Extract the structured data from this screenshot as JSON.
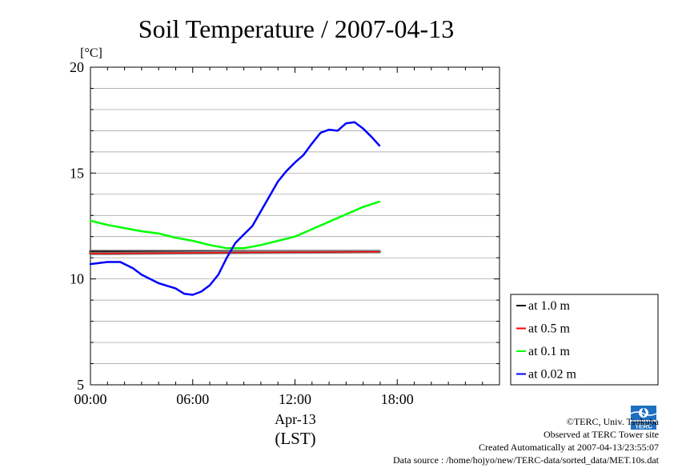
{
  "chart_data": {
    "type": "line",
    "title": "Soil Temperature / 2007-04-13",
    "ylabel": "[°C]",
    "xlabel_date": "Apr-13",
    "xlabel_tz": "(LST)",
    "ylim": [
      5,
      20
    ],
    "xlim": [
      "00:00",
      "24:00"
    ],
    "y_ticks": [
      5,
      10,
      15,
      20
    ],
    "x_ticks": [
      "00:00",
      "06:00",
      "12:00",
      "18:00"
    ],
    "grid": true,
    "legend_position": "right",
    "series": [
      {
        "name": "at 1.0 m",
        "color": "#000000",
        "points": [
          [
            "00:00",
            11.3
          ],
          [
            "04:00",
            11.3
          ],
          [
            "08:00",
            11.3
          ],
          [
            "12:00",
            11.3
          ],
          [
            "16:00",
            11.3
          ],
          [
            "16:57",
            11.3
          ]
        ]
      },
      {
        "name": "at 0.5 m",
        "color": "#ff0000",
        "points": [
          [
            "00:00",
            11.2
          ],
          [
            "04:00",
            11.22
          ],
          [
            "08:00",
            11.24
          ],
          [
            "12:00",
            11.26
          ],
          [
            "16:00",
            11.28
          ],
          [
            "16:57",
            11.28
          ]
        ]
      },
      {
        "name": "at 0.1 m",
        "color": "#00ff00",
        "points": [
          [
            "00:00",
            12.75
          ],
          [
            "01:00",
            12.55
          ],
          [
            "02:00",
            12.4
          ],
          [
            "03:00",
            12.25
          ],
          [
            "04:00",
            12.15
          ],
          [
            "05:00",
            11.95
          ],
          [
            "06:00",
            11.8
          ],
          [
            "07:00",
            11.6
          ],
          [
            "08:00",
            11.45
          ],
          [
            "09:00",
            11.45
          ],
          [
            "10:00",
            11.6
          ],
          [
            "11:00",
            11.8
          ],
          [
            "12:00",
            12.0
          ],
          [
            "13:00",
            12.35
          ],
          [
            "14:00",
            12.7
          ],
          [
            "15:00",
            13.05
          ],
          [
            "16:00",
            13.4
          ],
          [
            "16:57",
            13.65
          ]
        ]
      },
      {
        "name": "at 0.02 m",
        "color": "#0000ff",
        "points": [
          [
            "00:00",
            10.7
          ],
          [
            "01:00",
            10.8
          ],
          [
            "01:45",
            10.8
          ],
          [
            "02:30",
            10.5
          ],
          [
            "03:00",
            10.2
          ],
          [
            "04:00",
            9.8
          ],
          [
            "05:00",
            9.55
          ],
          [
            "05:30",
            9.3
          ],
          [
            "06:00",
            9.25
          ],
          [
            "06:30",
            9.4
          ],
          [
            "07:00",
            9.7
          ],
          [
            "07:30",
            10.2
          ],
          [
            "08:00",
            11.0
          ],
          [
            "08:30",
            11.7
          ],
          [
            "09:00",
            12.1
          ],
          [
            "09:30",
            12.5
          ],
          [
            "10:00",
            13.2
          ],
          [
            "10:30",
            13.9
          ],
          [
            "11:00",
            14.6
          ],
          [
            "11:30",
            15.1
          ],
          [
            "12:00",
            15.5
          ],
          [
            "12:30",
            15.85
          ],
          [
            "13:00",
            16.4
          ],
          [
            "13:30",
            16.9
          ],
          [
            "14:00",
            17.05
          ],
          [
            "14:30",
            17.0
          ],
          [
            "15:00",
            17.35
          ],
          [
            "15:30",
            17.4
          ],
          [
            "16:00",
            17.1
          ],
          [
            "16:30",
            16.7
          ],
          [
            "16:57",
            16.3
          ]
        ]
      }
    ]
  },
  "credits": {
    "copyright": "©TERC, Univ. Tsukuba",
    "observed": "Observed at TERC Tower site",
    "created": "Created Automatically at 2007-04-13/23:55:07",
    "source": "Data source : /home/hojyo/new/TERC-data/sorted_data/MET.10s.dat",
    "logo_text": "TERC"
  }
}
